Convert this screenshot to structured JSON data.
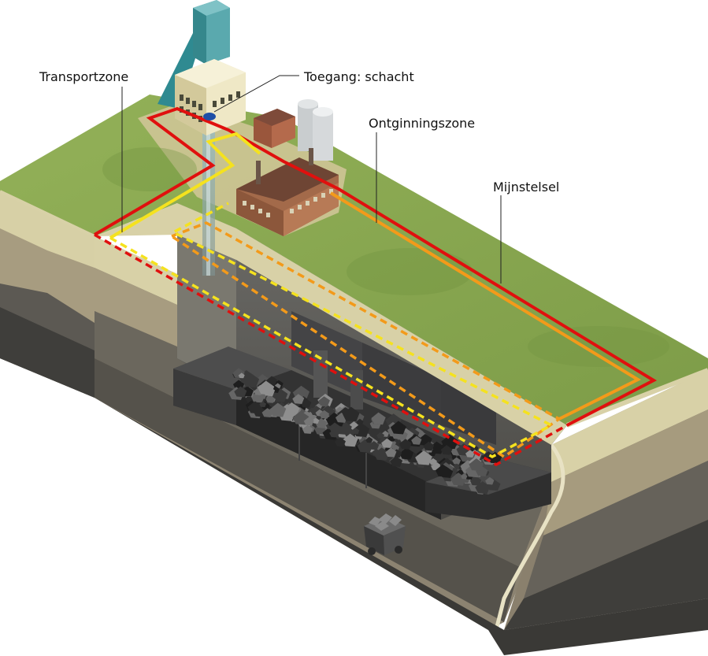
{
  "labels": {
    "transport": "Transportzone",
    "access": "Toegang: schacht",
    "extraction": "Ontginningszone",
    "mine_system": "Mijnstelsel"
  },
  "colors": {
    "grass": "#8fac54",
    "grass_dark": "#6f9140",
    "soil_top": "#d6cfa4",
    "soil_mid": "#a69b7e",
    "rock": "#6e6a60",
    "rock_dark": "#3f3e3b",
    "coal": "#2c2c2c",
    "mine_system_line": "#e0100e",
    "extraction_line": "#f39a1a",
    "transport_line": "#f5e21e",
    "shaft_marker": "#1f4fa6"
  }
}
